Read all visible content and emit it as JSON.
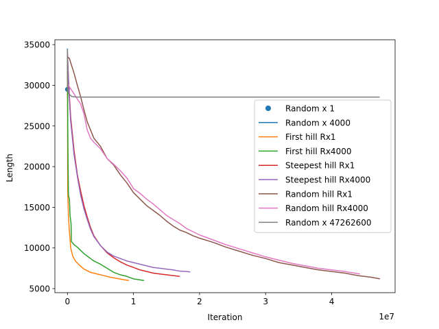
{
  "chart_data": {
    "type": "line",
    "title": "",
    "xlabel": "Iteration",
    "ylabel": "Length",
    "x_offset_label": "1e7",
    "x_scale": 10000000,
    "xlim": [
      -1900000,
      49600000
    ],
    "ylim": [
      4500,
      35600
    ],
    "xticks": [
      0,
      10000000,
      20000000,
      30000000,
      40000000
    ],
    "xtick_labels": [
      "0",
      "1",
      "2",
      "3",
      "4"
    ],
    "yticks": [
      5000,
      10000,
      15000,
      20000,
      25000,
      30000,
      35000
    ],
    "ytick_labels": [
      "5000",
      "10000",
      "15000",
      "20000",
      "25000",
      "30000",
      "35000"
    ],
    "grid": false,
    "legend_position": "center-right",
    "series": [
      {
        "name": "Random x 1",
        "kind": "scatter",
        "color": "#1f77b4",
        "points": [
          [
            0,
            29500
          ]
        ]
      },
      {
        "name": "Random x 4000",
        "kind": "line",
        "color": "#1f77b4",
        "points": [
          [
            0,
            34500
          ],
          [
            5000,
            33000
          ],
          [
            10000,
            30000
          ],
          [
            20000,
            28500
          ],
          [
            40000,
            28400
          ]
        ]
      },
      {
        "name": "First hill Rx1",
        "kind": "line",
        "color": "#ff7f0e",
        "points": [
          [
            0,
            34000
          ],
          [
            50000,
            17000
          ],
          [
            150000,
            14000
          ],
          [
            300000,
            12000
          ],
          [
            500000,
            10000
          ],
          [
            800000,
            9000
          ],
          [
            1200000,
            8400
          ],
          [
            1800000,
            7900
          ],
          [
            2500000,
            7400
          ],
          [
            3500000,
            7000
          ],
          [
            4500000,
            6800
          ],
          [
            5500000,
            6600
          ],
          [
            6500000,
            6400
          ],
          [
            7500000,
            6250
          ],
          [
            8500000,
            6100
          ],
          [
            9300000,
            6000
          ]
        ]
      },
      {
        "name": "First hill  Rx4000",
        "kind": "line",
        "color": "#2ca02c",
        "points": [
          [
            0,
            34200
          ],
          [
            50000,
            25000
          ],
          [
            100000,
            20000
          ],
          [
            150000,
            16500
          ],
          [
            300000,
            16000
          ],
          [
            400000,
            14000
          ],
          [
            550000,
            13000
          ],
          [
            600000,
            10800
          ],
          [
            1000000,
            10400
          ],
          [
            1500000,
            10100
          ],
          [
            2000000,
            9700
          ],
          [
            2500000,
            9300
          ],
          [
            3000000,
            9000
          ],
          [
            3500000,
            8700
          ],
          [
            4000000,
            8400
          ],
          [
            5000000,
            8000
          ],
          [
            6000000,
            7500
          ],
          [
            7000000,
            7000
          ],
          [
            8000000,
            6700
          ],
          [
            9000000,
            6500
          ],
          [
            10000000,
            6200
          ],
          [
            11600000,
            6000
          ]
        ]
      },
      {
        "name": "Steepest hill Rx1",
        "kind": "line",
        "color": "#d62728",
        "points": [
          [
            0,
            34000
          ],
          [
            200000,
            30000
          ],
          [
            500000,
            26000
          ],
          [
            1000000,
            22000
          ],
          [
            1500000,
            19000
          ],
          [
            2000000,
            17000
          ],
          [
            2500000,
            15200
          ],
          [
            3000000,
            13800
          ],
          [
            3500000,
            12500
          ],
          [
            4000000,
            11500
          ],
          [
            5000000,
            10300
          ],
          [
            6000000,
            9400
          ],
          [
            7000000,
            8800
          ],
          [
            8000000,
            8300
          ],
          [
            9000000,
            7900
          ],
          [
            10000000,
            7600
          ],
          [
            11000000,
            7300
          ],
          [
            12000000,
            7100
          ],
          [
            13000000,
            6900
          ],
          [
            14000000,
            6800
          ],
          [
            15000000,
            6700
          ],
          [
            16000000,
            6600
          ],
          [
            17000000,
            6500
          ]
        ]
      },
      {
        "name": "Steepest hill  Rx4000",
        "kind": "line",
        "color": "#9467bd",
        "points": [
          [
            0,
            34000
          ],
          [
            200000,
            29500
          ],
          [
            500000,
            25500
          ],
          [
            1000000,
            21500
          ],
          [
            1500000,
            18800
          ],
          [
            2000000,
            16500
          ],
          [
            2500000,
            14800
          ],
          [
            3000000,
            13500
          ],
          [
            3500000,
            12300
          ],
          [
            4000000,
            11400
          ],
          [
            5000000,
            10300
          ],
          [
            6000000,
            9500
          ],
          [
            7000000,
            9000
          ],
          [
            8000000,
            8700
          ],
          [
            9000000,
            8400
          ],
          [
            10000000,
            8200
          ],
          [
            11000000,
            8000
          ],
          [
            12000000,
            7800
          ],
          [
            13000000,
            7600
          ],
          [
            14000000,
            7500
          ],
          [
            15000000,
            7400
          ],
          [
            16000000,
            7300
          ],
          [
            17000000,
            7150
          ],
          [
            18000000,
            7100
          ],
          [
            18600000,
            7050
          ]
        ]
      },
      {
        "name": "Random hill Rx1",
        "kind": "line",
        "color": "#8c564b",
        "points": [
          [
            0,
            33500
          ],
          [
            300000,
            33300
          ],
          [
            600000,
            32500
          ],
          [
            1000000,
            31500
          ],
          [
            1500000,
            30000
          ],
          [
            2000000,
            28600
          ],
          [
            2500000,
            27000
          ],
          [
            3000000,
            25500
          ],
          [
            3500000,
            24500
          ],
          [
            4000000,
            23500
          ],
          [
            5000000,
            22500
          ],
          [
            6000000,
            21000
          ],
          [
            7000000,
            20200
          ],
          [
            8000000,
            19000
          ],
          [
            9000000,
            18000
          ],
          [
            10000000,
            16800
          ],
          [
            11000000,
            16000
          ],
          [
            12000000,
            15200
          ],
          [
            13000000,
            14600
          ],
          [
            14000000,
            14000
          ],
          [
            15000000,
            13300
          ],
          [
            16000000,
            12700
          ],
          [
            17000000,
            12200
          ],
          [
            18000000,
            11900
          ],
          [
            19000000,
            11500
          ],
          [
            20000000,
            11200
          ],
          [
            22000000,
            10700
          ],
          [
            24000000,
            10100
          ],
          [
            26000000,
            9600
          ],
          [
            28000000,
            9100
          ],
          [
            30000000,
            8700
          ],
          [
            32000000,
            8200
          ],
          [
            34000000,
            7900
          ],
          [
            36000000,
            7600
          ],
          [
            38000000,
            7300
          ],
          [
            40000000,
            7100
          ],
          [
            42000000,
            6900
          ],
          [
            44000000,
            6600
          ],
          [
            46000000,
            6400
          ],
          [
            47300000,
            6200
          ]
        ]
      },
      {
        "name": "Random hill  Rx4000",
        "kind": "line",
        "color": "#e377c2",
        "points": [
          [
            0,
            30300
          ],
          [
            300000,
            29800
          ],
          [
            800000,
            29200
          ],
          [
            1500000,
            28300
          ],
          [
            2000000,
            27700
          ],
          [
            2500000,
            26500
          ],
          [
            3000000,
            24500
          ],
          [
            3500000,
            23500
          ],
          [
            4000000,
            23000
          ],
          [
            5000000,
            22200
          ],
          [
            6000000,
            21000
          ],
          [
            7000000,
            20300
          ],
          [
            8000000,
            19500
          ],
          [
            9000000,
            18600
          ],
          [
            10000000,
            17300
          ],
          [
            11000000,
            16700
          ],
          [
            12000000,
            16000
          ],
          [
            13000000,
            15400
          ],
          [
            14000000,
            14700
          ],
          [
            15000000,
            14000
          ],
          [
            16000000,
            13500
          ],
          [
            17000000,
            13000
          ],
          [
            18000000,
            12400
          ],
          [
            20000000,
            11600
          ],
          [
            22000000,
            11000
          ],
          [
            24000000,
            10400
          ],
          [
            26000000,
            9900
          ],
          [
            28000000,
            9400
          ],
          [
            30000000,
            8900
          ],
          [
            32000000,
            8500
          ],
          [
            34000000,
            8100
          ],
          [
            36000000,
            7800
          ],
          [
            38000000,
            7500
          ],
          [
            40000000,
            7300
          ],
          [
            42000000,
            7100
          ],
          [
            44300000,
            6800
          ]
        ]
      },
      {
        "name": "Random x 47262600",
        "kind": "line",
        "color": "#7f7f7f",
        "points": [
          [
            0,
            34400
          ],
          [
            20000,
            32000
          ],
          [
            50000,
            29500
          ],
          [
            150000,
            29000
          ],
          [
            400000,
            28800
          ],
          [
            700000,
            28600
          ],
          [
            1500000,
            28550
          ],
          [
            5000000,
            28550
          ],
          [
            20000000,
            28550
          ],
          [
            47262600,
            28550
          ]
        ]
      }
    ]
  }
}
